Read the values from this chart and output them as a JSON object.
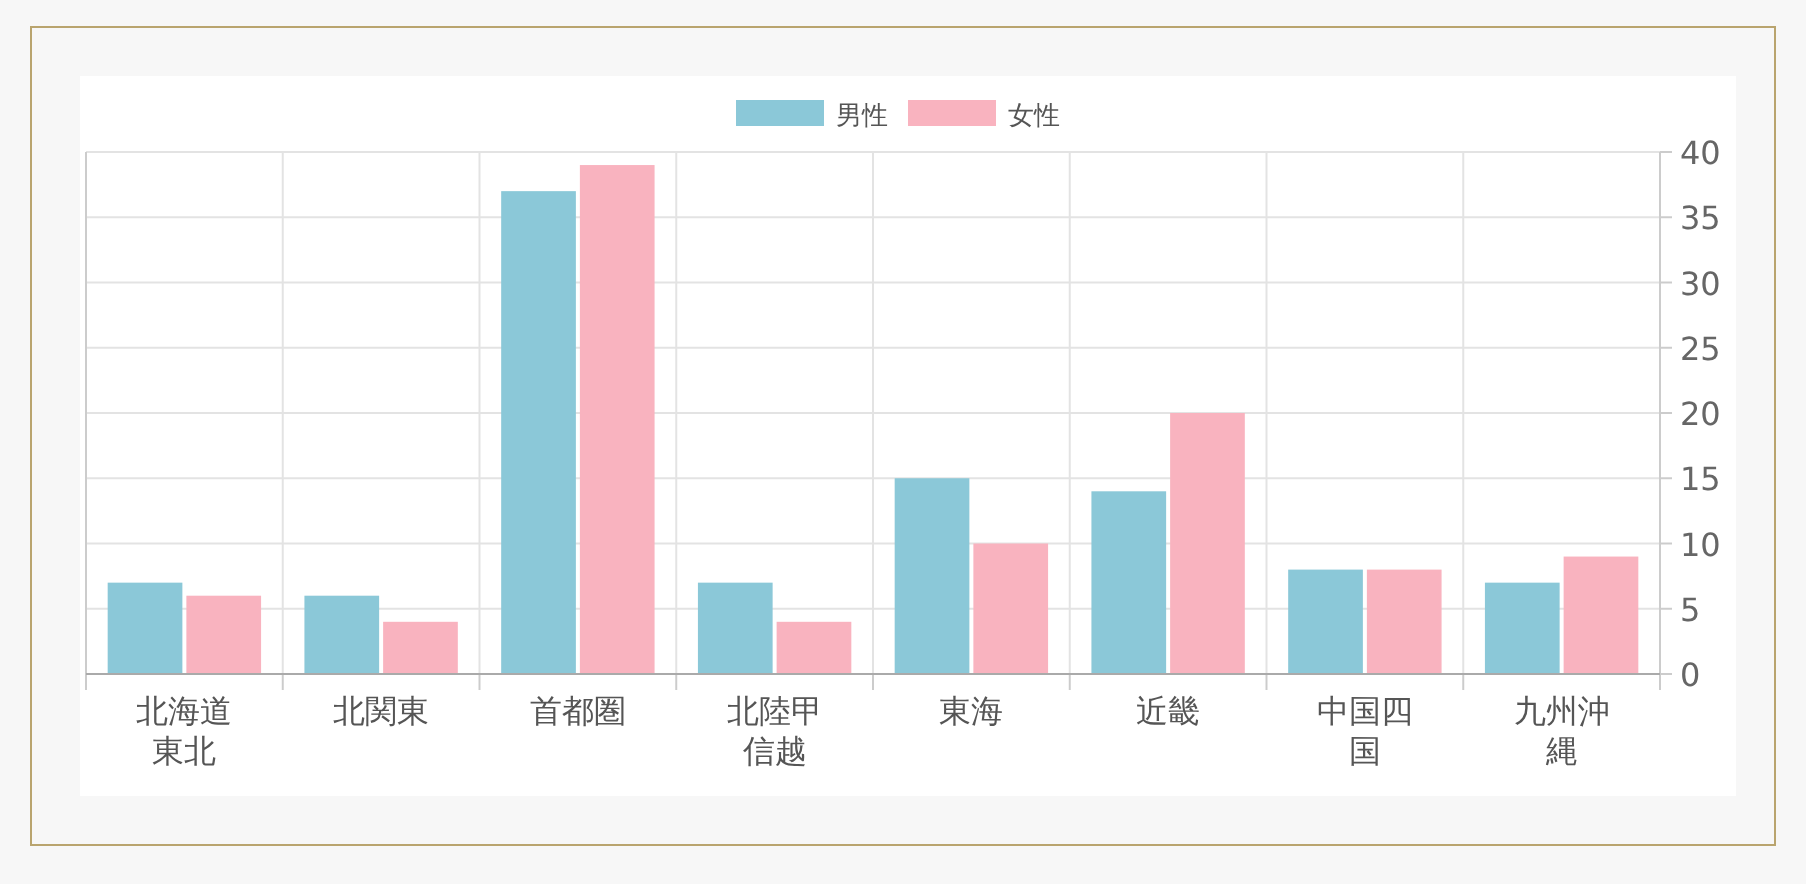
{
  "chart_data": {
    "type": "bar",
    "categories": [
      "北海道東北",
      "北関東",
      "首都圏",
      "北陸甲信越",
      "東海",
      "近畿",
      "中国四国",
      "九州沖縄"
    ],
    "series": [
      {
        "name": "男性",
        "color": "#8bc8d8",
        "values": [
          7,
          6,
          37,
          7,
          15,
          14,
          8,
          7
        ]
      },
      {
        "name": "女性",
        "color": "#f9b3bf",
        "values": [
          6,
          4,
          39,
          4,
          10,
          20,
          8,
          9
        ]
      }
    ],
    "ylim": [
      0,
      40
    ],
    "yticks": [
      0,
      5,
      10,
      15,
      20,
      25,
      30,
      35,
      40
    ],
    "grid": true,
    "legend": "top"
  }
}
